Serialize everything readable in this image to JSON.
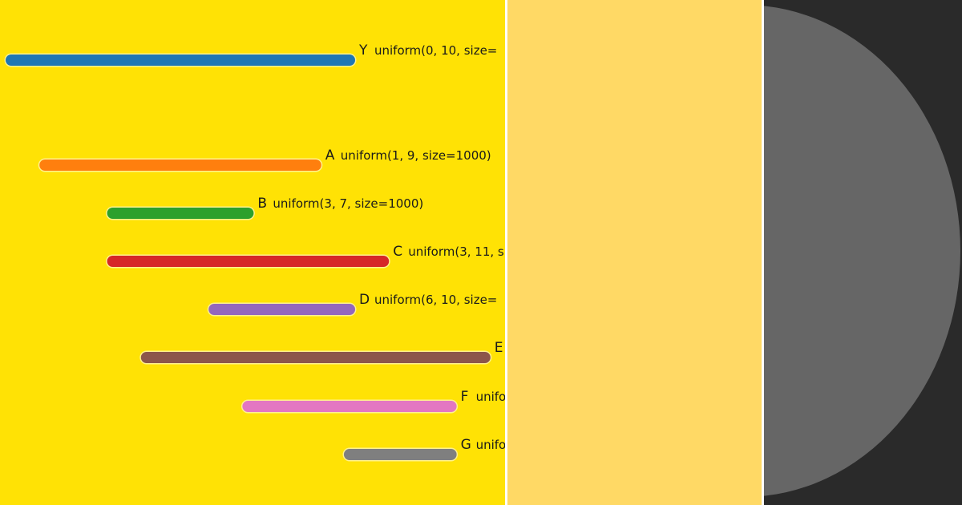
{
  "colors": {
    "left_background": "#ffe205",
    "middle_background": "#ffd965",
    "right_background": "#2a2a2a",
    "disc": "#666666"
  },
  "chart_data": {
    "type": "bar",
    "orientation": "horizontal-range",
    "title": "",
    "xlabel": "",
    "ylabel": "",
    "xlim": [
      0,
      10
    ],
    "grid": false,
    "series": [
      {
        "label": "Y",
        "low": 0,
        "high": 10,
        "color": "#1f77b4",
        "text": "uniform(0, 10, size="
      },
      {
        "label": "A",
        "low": 1,
        "high": 9,
        "color": "#ff7f0e",
        "text": "uniform(1, 9, size=1000)"
      },
      {
        "label": "B",
        "low": 3,
        "high": 7,
        "color": "#2ca02c",
        "text": "uniform(3, 7, size=1000)"
      },
      {
        "label": "C",
        "low": 3,
        "high": 11,
        "color": "#d62728",
        "text": "uniform(3, 11, s"
      },
      {
        "label": "D",
        "low": 6,
        "high": 10,
        "color": "#9467bd",
        "text": "uniform(6, 10, size="
      },
      {
        "label": "E",
        "low": 4,
        "high": 14,
        "color": "#8c564b",
        "text": ""
      },
      {
        "label": "F",
        "low": 7,
        "high": 13,
        "color": "#e377c2",
        "text": "unifor"
      },
      {
        "label": "G",
        "low": 10,
        "high": 13,
        "color": "#7f7f7f",
        "text": "unifo"
      }
    ]
  }
}
